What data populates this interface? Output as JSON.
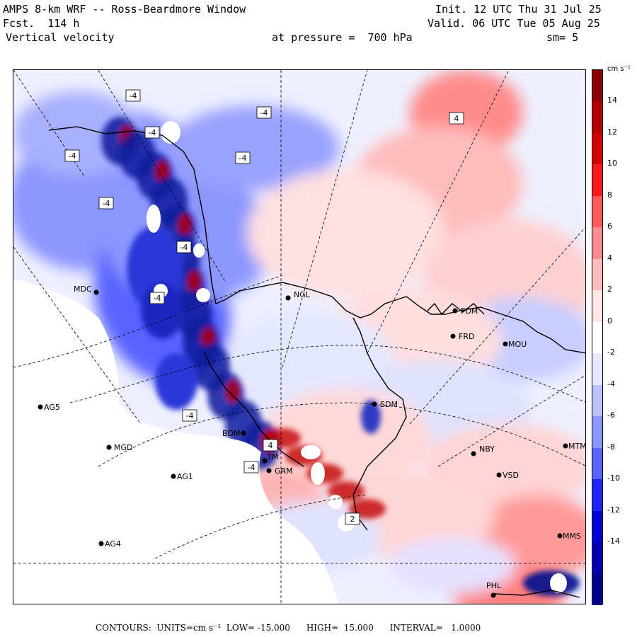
{
  "header": {
    "title": "AMPS 8-km WRF -- Ross-Beardmore Window",
    "forecast": "Fcst.  114 h",
    "field": "Vertical velocity",
    "init": "Init. 12 UTC Thu 31 Jul 25",
    "valid": "Valid. 06 UTC Tue 05 Aug 25",
    "pressure_label": "at pressure =  700 hPa",
    "smoothing": "sm= 5"
  },
  "colorbar": {
    "unit": "cm s⁻¹",
    "ticks": [
      "14",
      "12",
      "10",
      "8",
      "6",
      "4",
      "2",
      "0",
      "-2",
      "-4",
      "-6",
      "-8",
      "-10",
      "-12",
      "-14"
    ],
    "colors": [
      "#8b0000",
      "#b20000",
      "#d40000",
      "#ff1a1a",
      "#ff5a5a",
      "#ff8c8c",
      "#ffbcbc",
      "#ffe6e6",
      "#ffffff",
      "#e6e8ff",
      "#bcc2ff",
      "#8c96ff",
      "#5a64ff",
      "#1a28ff",
      "#0000d4",
      "#0000b2",
      "#00008b"
    ]
  },
  "stations": [
    {
      "id": "MDC",
      "label": "MDC"
    },
    {
      "id": "NGL",
      "label": "NGL"
    },
    {
      "id": "FDM",
      "label": "FDM"
    },
    {
      "id": "FRD",
      "label": "FRD"
    },
    {
      "id": "MOU",
      "label": "MOU"
    },
    {
      "id": "SDM",
      "label": "SDM"
    },
    {
      "id": "AG5",
      "label": "AG5"
    },
    {
      "id": "MGD",
      "label": "MGD"
    },
    {
      "id": "AG1",
      "label": "AG1"
    },
    {
      "id": "AG4",
      "label": "AG4"
    },
    {
      "id": "BDM",
      "label": "BDM"
    },
    {
      "id": "TM",
      "label": "TM"
    },
    {
      "id": "GRM",
      "label": "GRM"
    },
    {
      "id": "NBY",
      "label": "NBY"
    },
    {
      "id": "MTM",
      "label": "MTM"
    },
    {
      "id": "VSD",
      "label": "VSD"
    },
    {
      "id": "PHL",
      "label": "PHL"
    },
    {
      "id": "MMS",
      "label": "MMS"
    }
  ],
  "contour_labels": [
    "-4",
    "-4",
    "-4",
    "-4",
    "-4",
    "-4",
    "4",
    "-4",
    "-4",
    "4",
    "-4",
    "-4",
    "2"
  ],
  "footer": {
    "text": "CONTOURS:  UNITS=cm s⁻¹  LOW= -15.000      HIGH=  15.000      INTERVAL=   1.0000"
  }
}
